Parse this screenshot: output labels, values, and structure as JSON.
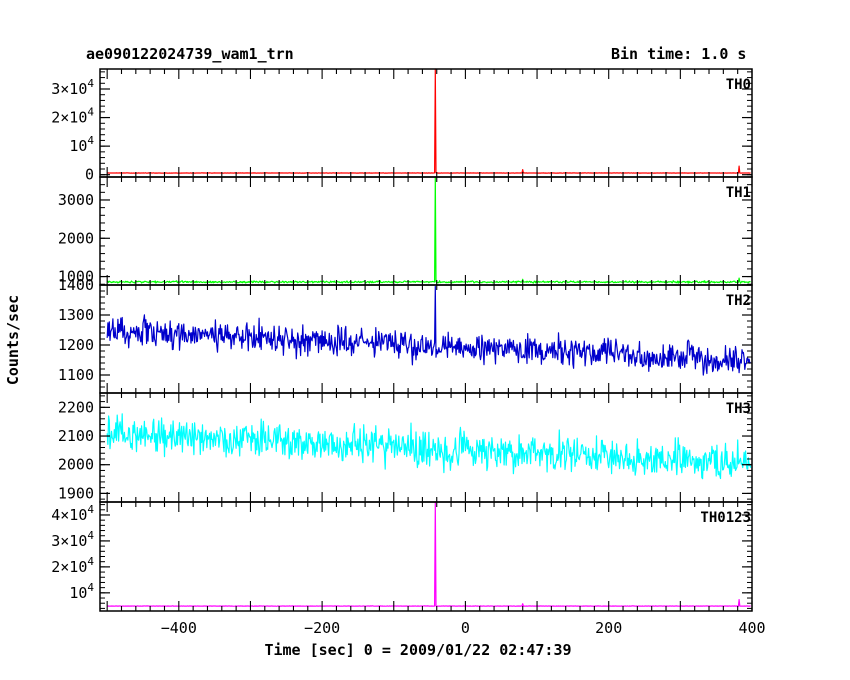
{
  "header": {
    "title": "ae090122024739_wam1_trn",
    "bin_time": "Bin time: 1.0 s"
  },
  "chart_data": {
    "type": "line",
    "xlabel": "Time [sec] 0 = 2009/01/22 02:47:39",
    "ylabel": "Counts/sec",
    "xlim": [
      -510,
      400
    ],
    "x_ticks": [
      -400,
      -200,
      0,
      200,
      400
    ],
    "x_tick_labels": [
      "−400",
      "−200",
      "0",
      "200",
      "400"
    ],
    "grid": false,
    "panels": [
      {
        "name": "TH0",
        "color": "#ff0000",
        "ylim": [
          -800,
          37000
        ],
        "y_ticks": [
          0,
          10000,
          20000,
          30000
        ],
        "y_tick_labels": [
          {
            "base": "0",
            "exp": ""
          },
          {
            "base": "10",
            "exp": "4"
          },
          {
            "base": "2×10",
            "exp": "4"
          },
          {
            "base": "3×10",
            "exp": "4"
          }
        ],
        "baseline": 600,
        "noise": 30,
        "spikes": [
          {
            "t": -42,
            "value": 37000
          },
          {
            "t": 80,
            "value": 1800
          },
          {
            "t": 382,
            "value": 3000
          }
        ]
      },
      {
        "name": "TH1",
        "color": "#00ff00",
        "ylim": [
          780,
          3600
        ],
        "y_ticks": [
          1000,
          2000,
          3000
        ],
        "y_tick_labels": [
          {
            "base": "1000",
            "exp": ""
          },
          {
            "base": "2000",
            "exp": ""
          },
          {
            "base": "3000",
            "exp": ""
          }
        ],
        "baseline": 860,
        "noise": 18,
        "spikes": [
          {
            "t": -42,
            "value": 3600
          },
          {
            "t": 80,
            "value": 930
          },
          {
            "t": 382,
            "value": 960
          }
        ]
      },
      {
        "name": "TH2",
        "color": "#0000cc",
        "ylim": [
          1040,
          1400
        ],
        "y_ticks": [
          1100,
          1200,
          1300,
          1400
        ],
        "y_tick_labels": [
          {
            "base": "1100",
            "exp": ""
          },
          {
            "base": "1200",
            "exp": ""
          },
          {
            "base": "1300",
            "exp": ""
          },
          {
            "base": "1400",
            "exp": ""
          }
        ],
        "trend_start": 1245,
        "trend_end": 1150,
        "noise": 35,
        "spikes": [
          {
            "t": -42,
            "value": 1395
          }
        ]
      },
      {
        "name": "TH3",
        "color": "#00ffff",
        "ylim": [
          1870,
          2250
        ],
        "y_ticks": [
          1900,
          2000,
          2100,
          2200
        ],
        "y_tick_labels": [
          {
            "base": "1900",
            "exp": ""
          },
          {
            "base": "2000",
            "exp": ""
          },
          {
            "base": "2100",
            "exp": ""
          },
          {
            "base": "2200",
            "exp": ""
          }
        ],
        "trend_start": 2110,
        "trend_end": 2005,
        "noise": 45,
        "spikes": []
      },
      {
        "name": "TH0123",
        "color": "#ff00ff",
        "ylim": [
          3000,
          45000
        ],
        "y_ticks": [
          10000,
          20000,
          30000,
          40000
        ],
        "y_tick_labels": [
          {
            "base": "10",
            "exp": "4"
          },
          {
            "base": "2×10",
            "exp": "4"
          },
          {
            "base": "3×10",
            "exp": "4"
          },
          {
            "base": "4×10",
            "exp": "4"
          }
        ],
        "baseline": 4900,
        "noise": 45,
        "spikes": [
          {
            "t": -42,
            "value": 45000
          },
          {
            "t": 80,
            "value": 5800
          },
          {
            "t": 382,
            "value": 7400
          }
        ]
      }
    ]
  }
}
